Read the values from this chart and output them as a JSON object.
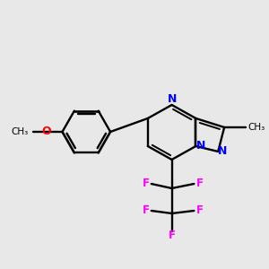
{
  "bg_color": "#e8e8e8",
  "bond_color": "#000000",
  "N_color": "#0000ff",
  "O_color": "#ff0000",
  "F_color": "#ff00ff",
  "methyl_label": "CH₃",
  "methoxy_label": "O",
  "methoxy_carbon": "CH₃",
  "figsize": [
    3.0,
    3.0
  ],
  "dpi": 100
}
